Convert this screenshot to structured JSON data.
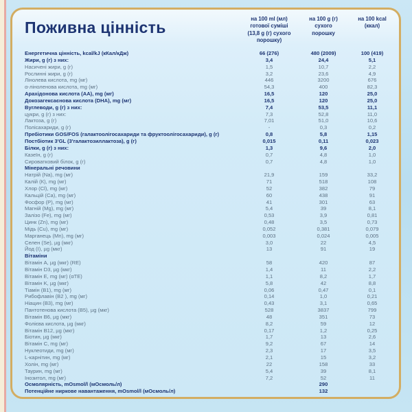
{
  "title": "Поживна цінність",
  "colors": {
    "accent_navy": "#1d3472",
    "text_gray": "#5d7184",
    "border_gold": "#d3ad62",
    "card_bg": "#d3ebf8",
    "page_bg": "#b9def0",
    "edge_cream": "#f6eed8",
    "edge_pink": "#e7a9a2"
  },
  "table": {
    "column_headers": {
      "per_100ml": "на 100 ml (мл)\nготової суміші\n(13,8 g (г) сухого\nпорошку)",
      "per_100g": "на 100 g (г)\nсухого\nпорошку",
      "per_100kcal": "на 100 kcal\n(ккал)"
    },
    "rows": [
      {
        "label": "Енергетична цінність, kcal/kJ (кКал/кДж)",
        "v": [
          "66 (276)",
          "480 (2009)",
          "100 (419)"
        ],
        "style": "bold"
      },
      {
        "label": "Жири, g (г) з них:",
        "v": [
          "3,4",
          "24,4",
          "5,1"
        ],
        "style": "bold"
      },
      {
        "label": "Насичені жири, g (г)",
        "v": [
          "1,5",
          "10,7",
          "2,2"
        ]
      },
      {
        "label": "Рослинні жири, g (г)",
        "v": [
          "3,2",
          "23,6",
          "4,9"
        ]
      },
      {
        "label": "Лінолева кислота, mg (мг)",
        "v": [
          "446",
          "3200",
          "676"
        ]
      },
      {
        "label": "α-ліноленова кислота, mg (мг)",
        "v": [
          "54,3",
          "400",
          "82,3"
        ]
      },
      {
        "label": "Арахідонова кислота (АА), mg (мг)",
        "v": [
          "16,5",
          "120",
          "25,0"
        ],
        "style": "bold"
      },
      {
        "label": "Докозагексаєнова кислота (DHA), mg (мг)",
        "v": [
          "16,5",
          "120",
          "25,0"
        ],
        "style": "bold"
      },
      {
        "label": "Вуглеводи, g (г) з них:",
        "v": [
          "7,4",
          "53,5",
          "11,1"
        ],
        "style": "bold"
      },
      {
        "label": "цукри, g (г) з них:",
        "v": [
          "7,3",
          "52,8",
          "11,0"
        ]
      },
      {
        "label": "Лактоза, g (г)",
        "v": [
          "7,01",
          "51,0",
          "10,6"
        ]
      },
      {
        "label": "Полісахариди, g (г)",
        "v": [
          "-",
          "0,3",
          "0,2"
        ]
      },
      {
        "label": "Пребіотики GOS/FOS (галактоолігосахариди та фруктоолігосахариди), g (г)",
        "v": [
          "0,8",
          "5,8",
          "1,15"
        ],
        "style": "bold"
      },
      {
        "label": "Постбіотик 3'GL (3'галактозиллактоза), g (г)",
        "v": [
          "0,015",
          "0,11",
          "0,023"
        ],
        "style": "bold"
      },
      {
        "label": "Білки, g (г) з них:",
        "v": [
          "1,3",
          "9,6",
          "2,0"
        ],
        "style": "bold"
      },
      {
        "label": "Казеїн, g (г)",
        "v": [
          "0,7",
          "4,8",
          "1,0"
        ]
      },
      {
        "label": "Сироватковий білок, g (г)",
        "v": [
          "0,7",
          "4,8",
          "1,0"
        ]
      },
      {
        "label": "Мінеральні речовини",
        "v": [
          "",
          "",
          ""
        ],
        "style": "section"
      },
      {
        "label": "Натрій (Na), mg (мг)",
        "v": [
          "21,9",
          "159",
          "33,2"
        ]
      },
      {
        "label": "Калій (К), mg (мг)",
        "v": [
          "71",
          "518",
          "108"
        ]
      },
      {
        "label": "Хлор (Cl), mg (мг)",
        "v": [
          "52",
          "382",
          "79"
        ]
      },
      {
        "label": "Кальцій (Са), mg (мг)",
        "v": [
          "60",
          "438",
          "91"
        ]
      },
      {
        "label": "Фосфор (Р), mg (мг)",
        "v": [
          "41",
          "301",
          "63"
        ]
      },
      {
        "label": "Магній (Mg), mg (мг)",
        "v": [
          "5,4",
          "39",
          "8,1"
        ]
      },
      {
        "label": "Залізо (Fe), mg (мг)",
        "v": [
          "0,53",
          "3,9",
          "0,81"
        ]
      },
      {
        "label": "Цинк (Zn), mg (мг)",
        "v": [
          "0,48",
          "3,5",
          "0,73"
        ]
      },
      {
        "label": "Мідь (Cu), mg (мг)",
        "v": [
          "0,052",
          "0,381",
          "0,079"
        ]
      },
      {
        "label": "Марганець (Mn), mg (мг)",
        "v": [
          "0,003",
          "0,024",
          "0,005"
        ]
      },
      {
        "label": "Селен (Se), µg  (мкг)",
        "v": [
          "3,0",
          "22",
          "4,5"
        ]
      },
      {
        "label": "Йод (I), µg (мкг)",
        "v": [
          "13",
          "91",
          "19"
        ]
      },
      {
        "label": "Вітаміни",
        "v": [
          "",
          "",
          ""
        ],
        "style": "section"
      },
      {
        "label": "Вітамін A, µg (мкг) (RE)",
        "v": [
          "58",
          "420",
          "87"
        ]
      },
      {
        "label": "Вітамін D3, µg  (мкг)",
        "v": [
          "1,4",
          "11",
          "2,2"
        ]
      },
      {
        "label": "Вітамін E, mg (мг) (αТЕ)",
        "v": [
          "1,1",
          "8,2",
          "1,7"
        ]
      },
      {
        "label": "Вітамін K, µg (мкг)",
        "v": [
          "5,8",
          "42",
          "8,8"
        ]
      },
      {
        "label": "Тіамін (B1), mg (мг)",
        "v": [
          "0,06",
          "0,47",
          "0,1"
        ]
      },
      {
        "label": "Рибофлавін (B2 ), mg (мг)",
        "v": [
          "0,14",
          "1,0",
          "0,21"
        ]
      },
      {
        "label": "Ніацин (B3), mg (мг)",
        "v": [
          "0,43",
          "3,1",
          "0,65"
        ]
      },
      {
        "label": "Пантотенова кислота (B5), µg (мкг)",
        "v": [
          "528",
          "3837",
          "799"
        ]
      },
      {
        "label": "Вітамін B6, µg (мкг)",
        "v": [
          "48",
          "351",
          "73"
        ]
      },
      {
        "label": "Фолієва кислота, µg (мкг)",
        "v": [
          "8,2",
          "59",
          "12"
        ]
      },
      {
        "label": "Вітамін B12, µg (мкг)",
        "v": [
          "0,17",
          "1,2",
          "0,25"
        ]
      },
      {
        "label": "Біотин, µg (мкг)",
        "v": [
          "1,7",
          "13",
          "2,6"
        ]
      },
      {
        "label": "Вітамін C, mg (мг)",
        "v": [
          "9,2",
          "67",
          "14"
        ]
      },
      {
        "label": "Нуклеотиди, mg (мг)",
        "v": [
          "2,3",
          "17",
          "3,5"
        ]
      },
      {
        "label": "L-карнітин, mg (мг)",
        "v": [
          "2,1",
          "15",
          "3,2"
        ]
      },
      {
        "label": "Холін, mg (мг)",
        "v": [
          "22",
          "158",
          "33"
        ]
      },
      {
        "label": "Таурин, mg (мг)",
        "v": [
          "5,4",
          "39",
          "8,1"
        ]
      },
      {
        "label": "Інозитол, mg (мг)",
        "v": [
          "7,2",
          "52",
          "11"
        ]
      },
      {
        "label": "Осмолярність, mOsmol/l (мОсмоль/л)",
        "v": [
          "",
          "290",
          ""
        ],
        "style": "bold"
      },
      {
        "label": "Потенційне ниркове навантаження, mOsmol/l (мОсмоль/л)",
        "v": [
          "",
          "132",
          ""
        ],
        "style": "bold"
      }
    ]
  }
}
